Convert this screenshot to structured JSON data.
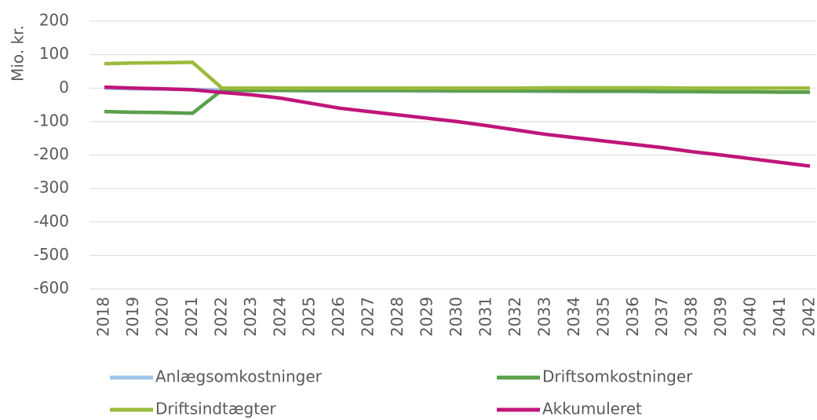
{
  "chart_data": {
    "type": "line",
    "y_label": "Mio. kr.",
    "categories": [
      "2018",
      "2019",
      "2020",
      "2021",
      "2022",
      "2023",
      "2024",
      "2025",
      "2026",
      "2027",
      "2028",
      "2029",
      "2030",
      "2031",
      "2032",
      "2033",
      "2034",
      "2035",
      "2036",
      "2037",
      "2038",
      "2039",
      "2040",
      "2041",
      "2042"
    ],
    "series": [
      {
        "name": "Anlægsomkostninger",
        "color": "#9dc3e6",
        "values": [
          0,
          -2,
          -3,
          -4,
          -6,
          -7,
          -7,
          -8,
          -8,
          -8,
          -8,
          -9,
          -9,
          -9,
          -9,
          -10,
          -10,
          -10,
          -10,
          -11,
          -11,
          -11,
          -11,
          -12,
          -12
        ]
      },
      {
        "name": "Driftsomkostninger",
        "color": "#5b9f4a",
        "values": [
          -70,
          -72,
          -73,
          -75,
          -6,
          -7,
          -7,
          -7,
          -7,
          -7,
          -7,
          -7,
          -8,
          -8,
          -8,
          -8,
          -9,
          -9,
          -9,
          -10,
          -10,
          -11,
          -11,
          -12,
          -12
        ]
      },
      {
        "name": "Driftsindtægter",
        "color": "#9bbb3c",
        "values": [
          73,
          75,
          76,
          77,
          0,
          0,
          0,
          0,
          0,
          0,
          0,
          0,
          0,
          0,
          0,
          1,
          1,
          1,
          1,
          1,
          0,
          0,
          0,
          0,
          0
        ]
      },
      {
        "name": "Akkumuleret",
        "color": "#c0157a",
        "values": [
          3,
          0,
          -2,
          -5,
          -13,
          -20,
          -30,
          -45,
          -60,
          -70,
          -80,
          -90,
          -100,
          -112,
          -125,
          -138,
          -148,
          -158,
          -168,
          -178,
          -190,
          -200,
          -211,
          -222,
          -233
        ]
      }
    ],
    "ylim": [
      -600,
      200
    ],
    "yticks": [
      -600,
      -500,
      -400,
      -300,
      -200,
      -100,
      0,
      100,
      200
    ],
    "grid": true
  }
}
